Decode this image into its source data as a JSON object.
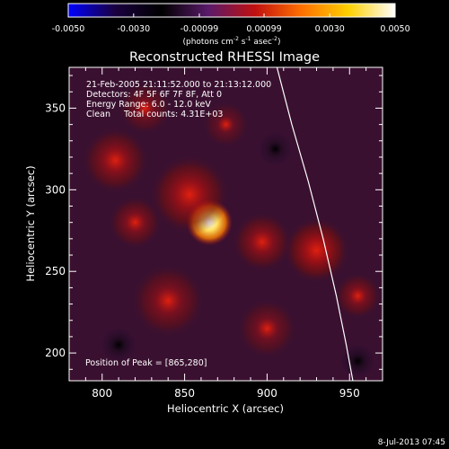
{
  "chart_data": {
    "type": "heatmap",
    "title": "Reconstructed RHESSI Image",
    "xlabel": "Heliocentric X (arcsec)",
    "ylabel": "Heliocentric Y (arcsec)",
    "xlim": [
      780,
      970
    ],
    "ylim": [
      183,
      375
    ],
    "x_ticks": [
      800,
      850,
      900,
      950
    ],
    "y_ticks": [
      200,
      250,
      300,
      350
    ],
    "colorbar": {
      "range": [
        -0.005,
        0.005
      ],
      "tick_values": [
        -0.005,
        -0.003,
        -0.00099,
        0.00099,
        0.003,
        0.005
      ],
      "tick_labels": [
        "-0.0050",
        "-0.0030",
        "-0.00099",
        "0.00099",
        "0.0030",
        "0.0050"
      ],
      "units_line": "(photons cm",
      "units_exp1": "-2",
      "units_mid": " s",
      "units_exp2": "-1",
      "units_end": " asec",
      "units_exp3": "-2",
      "units_close": ")",
      "colors": [
        "#0000ff",
        "#1a0040",
        "#000000",
        "#5a1a6a",
        "#c01010",
        "#ff7000",
        "#ffd000",
        "#ffffff"
      ]
    },
    "annotations": {
      "time_range": "21-Feb-2005 21:11:52.000 to 21:13:12.000",
      "detectors": "Detectors: 4F 5F 6F 7F 8F, Att 0",
      "energy": "Energy Range: 6.0 - 12.0 keV",
      "clean": "Clean     Total counts: 4.31E+03",
      "peak": "Position of Peak = [865,280]"
    },
    "peak": [
      865,
      280
    ],
    "limb_curve": [
      [
        906,
        375
      ],
      [
        915,
        340
      ],
      [
        925,
        305
      ],
      [
        934,
        270
      ],
      [
        942,
        235
      ],
      [
        948,
        205
      ],
      [
        952,
        183
      ]
    ],
    "sources": [
      {
        "x": 865,
        "y": 280,
        "radius": 14,
        "intensity": 1.0
      },
      {
        "x": 853,
        "y": 297,
        "radius": 24,
        "intensity": 0.4
      },
      {
        "x": 897,
        "y": 268,
        "radius": 18,
        "intensity": 0.35
      },
      {
        "x": 930,
        "y": 263,
        "radius": 20,
        "intensity": 0.45
      },
      {
        "x": 808,
        "y": 318,
        "radius": 20,
        "intensity": 0.35
      },
      {
        "x": 840,
        "y": 232,
        "radius": 22,
        "intensity": 0.3
      },
      {
        "x": 826,
        "y": 350,
        "radius": 16,
        "intensity": 0.25
      },
      {
        "x": 820,
        "y": 280,
        "radius": 16,
        "intensity": 0.3
      },
      {
        "x": 875,
        "y": 340,
        "radius": 14,
        "intensity": 0.2
      },
      {
        "x": 900,
        "y": 215,
        "radius": 18,
        "intensity": 0.25
      },
      {
        "x": 955,
        "y": 235,
        "radius": 14,
        "intensity": 0.3
      },
      {
        "x": 810,
        "y": 205,
        "radius": 12,
        "intensity": -0.3
      },
      {
        "x": 905,
        "y": 325,
        "radius": 12,
        "intensity": -0.25
      },
      {
        "x": 955,
        "y": 195,
        "radius": 12,
        "intensity": -0.3
      }
    ]
  },
  "footer": {
    "timestamp": "8-Jul-2013 07:45"
  }
}
